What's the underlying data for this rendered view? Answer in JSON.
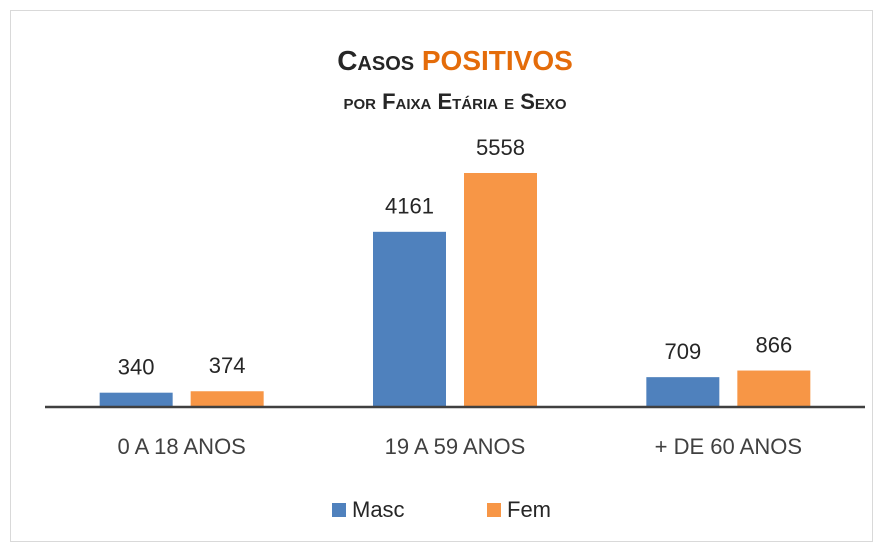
{
  "chart_data": {
    "type": "bar",
    "title": [
      "Casos",
      "POSITIVOS"
    ],
    "title_colors": [
      "#262626",
      "#e46c0a"
    ],
    "subtitle": "por Faixa Etária e Sexo",
    "categories": [
      "0 A 18 ANOS",
      "19 A 59 ANOS",
      "+ DE 60 ANOS"
    ],
    "series": [
      {
        "name": "Masc",
        "color": "#4f81bd",
        "values": [
          340,
          4161,
          709
        ]
      },
      {
        "name": "Fem",
        "color": "#f79646",
        "values": [
          374,
          5558,
          866
        ]
      }
    ],
    "legend": "bottom"
  }
}
